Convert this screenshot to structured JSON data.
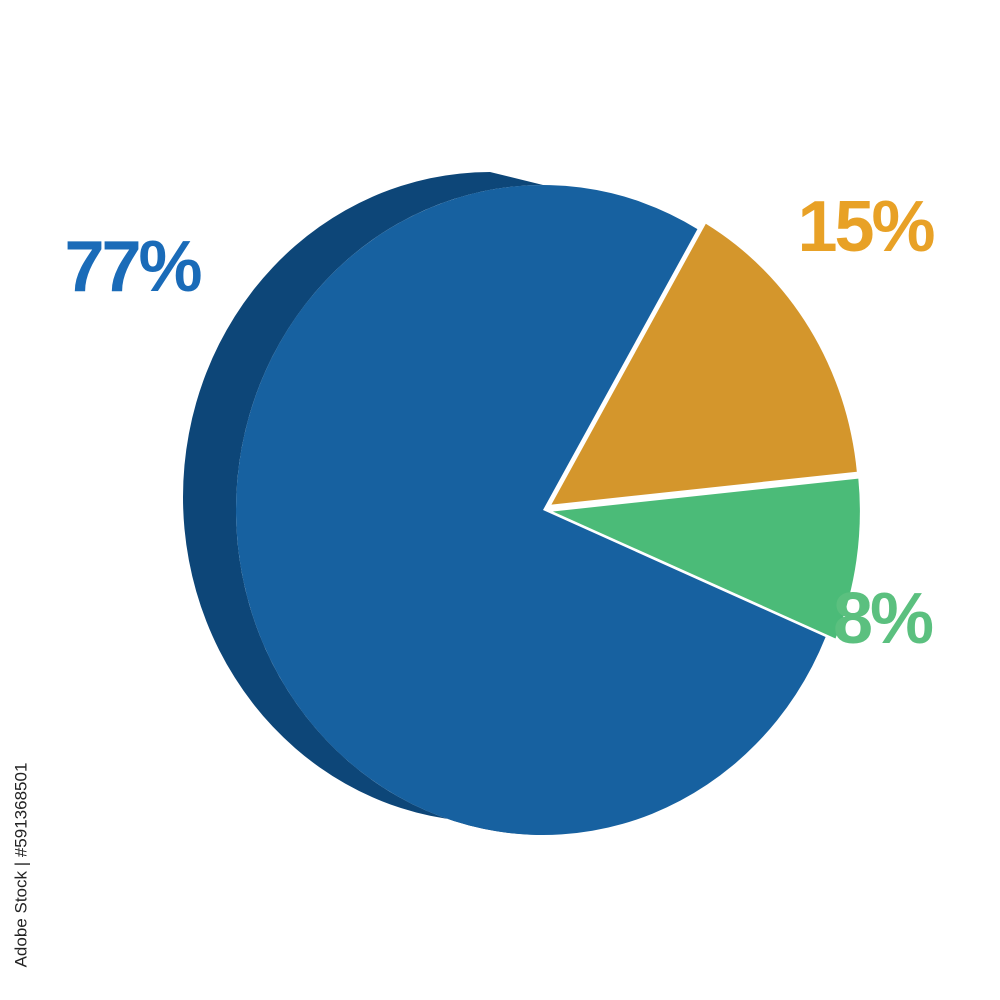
{
  "chart_data": {
    "type": "pie",
    "categories": [
      null,
      null,
      null
    ],
    "values": [
      77,
      15,
      8
    ],
    "value_labels": [
      "77%",
      "15%",
      "8%"
    ],
    "colors": [
      "#1761a0",
      "#d4962c",
      "#4bbb78"
    ],
    "label_colors": [
      "#1a6bb8",
      "#e8a126",
      "#5bc07f"
    ],
    "credit": "Adobe Stock | #591368501"
  }
}
